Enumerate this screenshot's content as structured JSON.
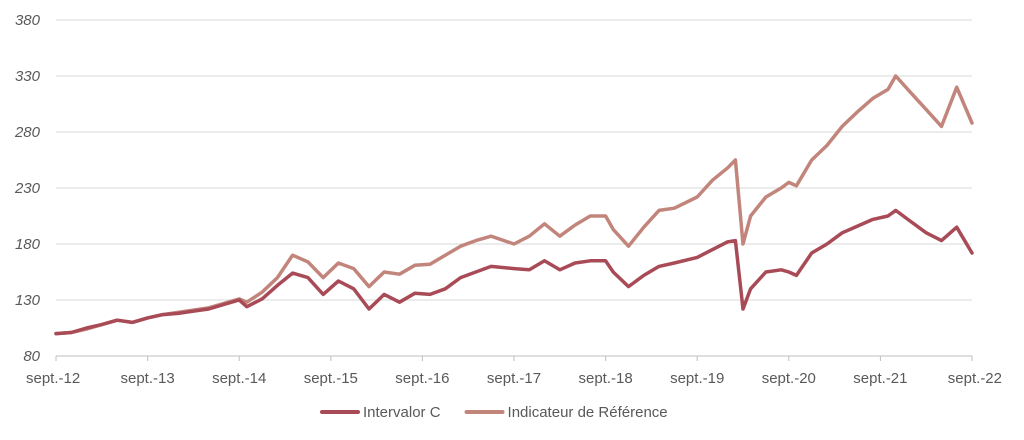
{
  "chart_data": {
    "type": "line",
    "title": "",
    "xlabel": "",
    "ylabel": "",
    "ylim": [
      80,
      380
    ],
    "y_ticks": [
      80,
      130,
      180,
      230,
      280,
      330,
      380
    ],
    "x_tick_labels": [
      "sept.-12",
      "sept.-13",
      "sept.-14",
      "sept.-15",
      "sept.-16",
      "sept.-17",
      "sept.-18",
      "sept.-19",
      "sept.-20",
      "sept.-21",
      "sept.-22"
    ],
    "grid": "horizontal",
    "legend_position": "bottom",
    "series": [
      {
        "name": "Intervalor C",
        "color": "#a84b57",
        "points": [
          [
            "2012-09",
            100
          ],
          [
            "2012-11",
            101
          ],
          [
            "2013-01",
            105
          ],
          [
            "2013-03",
            108
          ],
          [
            "2013-05",
            112
          ],
          [
            "2013-07",
            110
          ],
          [
            "2013-09",
            114
          ],
          [
            "2013-11",
            117
          ],
          [
            "2014-01",
            118
          ],
          [
            "2014-03",
            120
          ],
          [
            "2014-05",
            122
          ],
          [
            "2014-07",
            126
          ],
          [
            "2014-09",
            130
          ],
          [
            "2014-10",
            124
          ],
          [
            "2014-12",
            131
          ],
          [
            "2015-02",
            143
          ],
          [
            "2015-04",
            154
          ],
          [
            "2015-06",
            150
          ],
          [
            "2015-08",
            135
          ],
          [
            "2015-10",
            147
          ],
          [
            "2015-12",
            140
          ],
          [
            "2016-02",
            122
          ],
          [
            "2016-04",
            135
          ],
          [
            "2016-06",
            128
          ],
          [
            "2016-08",
            136
          ],
          [
            "2016-10",
            135
          ],
          [
            "2016-12",
            140
          ],
          [
            "2017-02",
            150
          ],
          [
            "2017-04",
            155
          ],
          [
            "2017-06",
            160
          ],
          [
            "2017-09",
            158
          ],
          [
            "2017-11",
            157
          ],
          [
            "2018-01",
            165
          ],
          [
            "2018-03",
            157
          ],
          [
            "2018-05",
            163
          ],
          [
            "2018-07",
            165
          ],
          [
            "2018-09",
            165
          ],
          [
            "2018-10",
            155
          ],
          [
            "2018-12",
            142
          ],
          [
            "2019-02",
            152
          ],
          [
            "2019-04",
            160
          ],
          [
            "2019-06",
            163
          ],
          [
            "2019-09",
            168
          ],
          [
            "2019-11",
            175
          ],
          [
            "2020-01",
            182
          ],
          [
            "2020-02",
            183
          ],
          [
            "2020-03",
            122
          ],
          [
            "2020-04",
            140
          ],
          [
            "2020-06",
            155
          ],
          [
            "2020-08",
            157
          ],
          [
            "2020-09",
            155
          ],
          [
            "2020-10",
            152
          ],
          [
            "2020-12",
            172
          ],
          [
            "2021-02",
            180
          ],
          [
            "2021-04",
            190
          ],
          [
            "2021-06",
            196
          ],
          [
            "2021-08",
            202
          ],
          [
            "2021-10",
            205
          ],
          [
            "2021-11",
            210
          ],
          [
            "2022-01",
            200
          ],
          [
            "2022-03",
            190
          ],
          [
            "2022-05",
            183
          ],
          [
            "2022-07",
            195
          ],
          [
            "2022-09",
            172
          ]
        ]
      },
      {
        "name": "Indicateur de Référence",
        "color": "#c2857c",
        "points": [
          [
            "2012-09",
            100
          ],
          [
            "2012-11",
            101
          ],
          [
            "2013-01",
            104
          ],
          [
            "2013-03",
            108
          ],
          [
            "2013-05",
            112
          ],
          [
            "2013-07",
            110
          ],
          [
            "2013-09",
            114
          ],
          [
            "2013-11",
            117
          ],
          [
            "2014-01",
            119
          ],
          [
            "2014-03",
            121
          ],
          [
            "2014-05",
            123
          ],
          [
            "2014-07",
            127
          ],
          [
            "2014-09",
            131
          ],
          [
            "2014-10",
            128
          ],
          [
            "2014-12",
            137
          ],
          [
            "2015-02",
            150
          ],
          [
            "2015-04",
            170
          ],
          [
            "2015-06",
            164
          ],
          [
            "2015-08",
            150
          ],
          [
            "2015-10",
            163
          ],
          [
            "2015-12",
            158
          ],
          [
            "2016-02",
            142
          ],
          [
            "2016-04",
            155
          ],
          [
            "2016-06",
            153
          ],
          [
            "2016-08",
            161
          ],
          [
            "2016-10",
            162
          ],
          [
            "2016-12",
            170
          ],
          [
            "2017-02",
            178
          ],
          [
            "2017-04",
            183
          ],
          [
            "2017-06",
            187
          ],
          [
            "2017-09",
            180
          ],
          [
            "2017-11",
            187
          ],
          [
            "2018-01",
            198
          ],
          [
            "2018-03",
            187
          ],
          [
            "2018-05",
            197
          ],
          [
            "2018-07",
            205
          ],
          [
            "2018-09",
            205
          ],
          [
            "2018-10",
            193
          ],
          [
            "2018-12",
            178
          ],
          [
            "2019-02",
            195
          ],
          [
            "2019-04",
            210
          ],
          [
            "2019-06",
            212
          ],
          [
            "2019-09",
            222
          ],
          [
            "2019-11",
            237
          ],
          [
            "2020-01",
            248
          ],
          [
            "2020-02",
            255
          ],
          [
            "2020-03",
            180
          ],
          [
            "2020-04",
            205
          ],
          [
            "2020-06",
            222
          ],
          [
            "2020-08",
            230
          ],
          [
            "2020-09",
            235
          ],
          [
            "2020-10",
            232
          ],
          [
            "2020-12",
            255
          ],
          [
            "2021-02",
            268
          ],
          [
            "2021-04",
            285
          ],
          [
            "2021-06",
            298
          ],
          [
            "2021-08",
            310
          ],
          [
            "2021-10",
            318
          ],
          [
            "2021-11",
            330
          ],
          [
            "2022-01",
            315
          ],
          [
            "2022-03",
            300
          ],
          [
            "2022-05",
            285
          ],
          [
            "2022-07",
            320
          ],
          [
            "2022-09",
            288
          ]
        ]
      }
    ]
  }
}
